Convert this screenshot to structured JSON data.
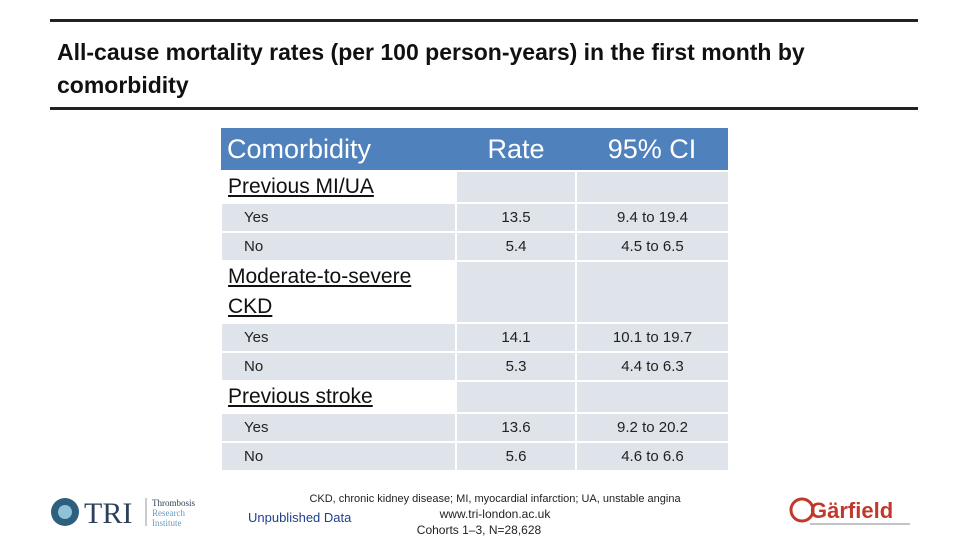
{
  "header": {
    "title": "All-cause mortality rates (per 100 person-years) in the first month by comorbidity"
  },
  "table": {
    "columns": [
      "Comorbidity",
      "Rate",
      "95% CI"
    ],
    "groups": [
      {
        "label": "Previous MI/UA",
        "rows": [
          [
            "Yes",
            13.5,
            "9.4 to 19.4"
          ],
          [
            "No",
            5.4,
            "4.5 to 6.5"
          ]
        ]
      },
      {
        "label": "Moderate-to-severe CKD",
        "rows": [
          [
            "Yes",
            14.1,
            "10.1 to 19.7"
          ],
          [
            "No",
            5.3,
            "4.4 to 6.3"
          ]
        ]
      },
      {
        "label": "Previous stroke",
        "rows": [
          [
            "Yes",
            13.6,
            "9.2 to 20.2"
          ],
          [
            "No",
            5.6,
            "4.6 to 6.6"
          ]
        ]
      }
    ]
  },
  "footer": {
    "abbreviations": "CKD, chronic kidney disease; MI, myocardial infarction; UA, unstable angina",
    "website": "www.tri-london.ac.uk",
    "note": "Unpublished Data",
    "cohorts": "Cohorts 1–3, N=28,628"
  },
  "logos": {
    "tri": "TRI",
    "tri_name": [
      "Thrombosis",
      "Research",
      "Institute"
    ],
    "garfield": "Gärfield"
  }
}
